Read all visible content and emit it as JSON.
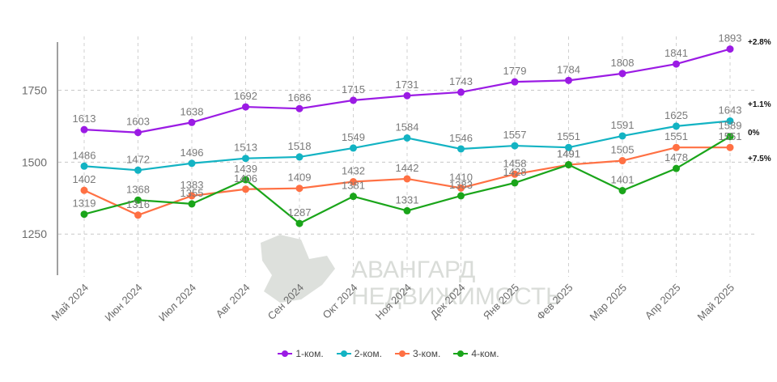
{
  "chart_data": {
    "type": "line",
    "categories": [
      "Май 2024",
      "Июн 2024",
      "Июл 2024",
      "Авг 2024",
      "Сен 2024",
      "Окт 2024",
      "Ноя 2024",
      "Дек 2024",
      "Янв 2025",
      "Фев 2025",
      "Мар 2025",
      "Апр 2025",
      "Май 2025"
    ],
    "series": [
      {
        "name": "1-ком.",
        "color": "#9b1be4",
        "values": [
          1613,
          1603,
          1638,
          1692,
          1686,
          1715,
          1731,
          1743,
          1779,
          1784,
          1808,
          1841,
          1893
        ],
        "change": "+2.8%"
      },
      {
        "name": "2-ком.",
        "color": "#13b3c3",
        "values": [
          1486,
          1472,
          1496,
          1513,
          1518,
          1549,
          1584,
          1546,
          1557,
          1551,
          1591,
          1625,
          1643
        ],
        "change": "+1.1%"
      },
      {
        "name": "3-ком.",
        "color": "#ff7043",
        "values": [
          1402,
          1316,
          1383,
          1406,
          1409,
          1432,
          1442,
          1410,
          1458,
          1491,
          1505,
          1551,
          1551
        ],
        "change": "0%"
      },
      {
        "name": "4-ком.",
        "color": "#1aa51a",
        "values": [
          1319,
          1368,
          1355,
          1439,
          1287,
          1381,
          1331,
          1383,
          1428,
          1491,
          1401,
          1478,
          1589
        ],
        "change": "+7.5%"
      }
    ],
    "yticks": [
      1250,
      1500,
      1750
    ],
    "ylim": [
      1110,
      1965
    ],
    "grid": true,
    "legend": "bottom",
    "watermark": "АВАНГАРД НЕДВИЖИМОСТЬ"
  }
}
